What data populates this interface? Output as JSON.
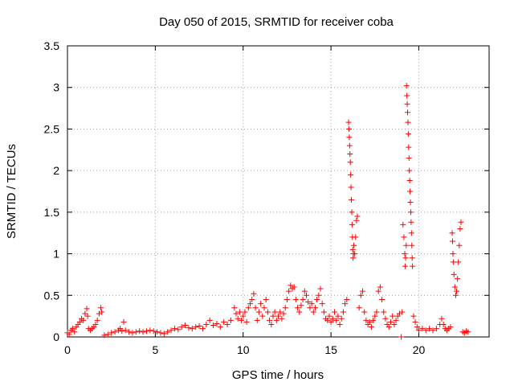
{
  "chart_data": {
    "type": "scatter",
    "title": "Day 050 of 2015, SRMTID for receiver coba",
    "xlabel": "GPS time / hours",
    "ylabel": "SRMTID / TECUs",
    "xlim": [
      0,
      24
    ],
    "ylim": [
      0,
      3.5
    ],
    "xticks": [
      0,
      5,
      10,
      15,
      20
    ],
    "yticks": [
      0,
      0.5,
      1,
      1.5,
      2,
      2.5,
      3,
      3.5
    ],
    "xtick_labels": [
      "0",
      "5",
      "10",
      "15",
      "20"
    ],
    "ytick_labels": [
      "0",
      "0.5",
      "1",
      "1.5",
      "2",
      "2.5",
      "3",
      "3.5"
    ],
    "grid": true,
    "marker": "+",
    "color": "#ff0000",
    "series": [
      {
        "name": "SRMTID",
        "points": [
          [
            0.0,
            0.05
          ],
          [
            0.1,
            0.03
          ],
          [
            0.2,
            0.08
          ],
          [
            0.3,
            0.1
          ],
          [
            0.4,
            0.06
          ],
          [
            0.5,
            0.12
          ],
          [
            0.6,
            0.15
          ],
          [
            0.7,
            0.18
          ],
          [
            0.8,
            0.22
          ],
          [
            0.9,
            0.2
          ],
          [
            1.0,
            0.28
          ],
          [
            1.1,
            0.34
          ],
          [
            1.15,
            0.25
          ],
          [
            1.2,
            0.1
          ],
          [
            1.3,
            0.08
          ],
          [
            1.4,
            0.1
          ],
          [
            1.5,
            0.12
          ],
          [
            1.6,
            0.15
          ],
          [
            1.7,
            0.2
          ],
          [
            1.8,
            0.28
          ],
          [
            1.9,
            0.35
          ],
          [
            1.95,
            0.3
          ],
          [
            2.1,
            0.02
          ],
          [
            2.3,
            0.03
          ],
          [
            2.5,
            0.05
          ],
          [
            2.7,
            0.06
          ],
          [
            2.9,
            0.08
          ],
          [
            3.0,
            0.1
          ],
          [
            3.1,
            0.07
          ],
          [
            3.2,
            0.18
          ],
          [
            3.3,
            0.08
          ],
          [
            3.5,
            0.06
          ],
          [
            3.7,
            0.05
          ],
          [
            3.9,
            0.06
          ],
          [
            4.1,
            0.07
          ],
          [
            4.3,
            0.06
          ],
          [
            4.5,
            0.07
          ],
          [
            4.7,
            0.08
          ],
          [
            4.9,
            0.07
          ],
          [
            5.1,
            0.06
          ],
          [
            5.3,
            0.05
          ],
          [
            5.5,
            0.04
          ],
          [
            5.7,
            0.06
          ],
          [
            5.9,
            0.08
          ],
          [
            6.1,
            0.1
          ],
          [
            6.3,
            0.09
          ],
          [
            6.5,
            0.12
          ],
          [
            6.7,
            0.14
          ],
          [
            6.9,
            0.11
          ],
          [
            7.1,
            0.1
          ],
          [
            7.3,
            0.12
          ],
          [
            7.5,
            0.13
          ],
          [
            7.7,
            0.1
          ],
          [
            7.9,
            0.15
          ],
          [
            8.1,
            0.2
          ],
          [
            8.3,
            0.14
          ],
          [
            8.5,
            0.16
          ],
          [
            8.7,
            0.12
          ],
          [
            8.9,
            0.18
          ],
          [
            9.1,
            0.15
          ],
          [
            9.3,
            0.2
          ],
          [
            9.5,
            0.35
          ],
          [
            9.6,
            0.28
          ],
          [
            9.7,
            0.22
          ],
          [
            9.8,
            0.3
          ],
          [
            9.9,
            0.2
          ],
          [
            10.0,
            0.25
          ],
          [
            10.1,
            0.3
          ],
          [
            10.2,
            0.18
          ],
          [
            10.3,
            0.35
          ],
          [
            10.4,
            0.4
          ],
          [
            10.5,
            0.45
          ],
          [
            10.6,
            0.52
          ],
          [
            10.7,
            0.35
          ],
          [
            10.8,
            0.2
          ],
          [
            10.9,
            0.3
          ],
          [
            11.0,
            0.4
          ],
          [
            11.1,
            0.25
          ],
          [
            11.2,
            0.35
          ],
          [
            11.3,
            0.45
          ],
          [
            11.4,
            0.3
          ],
          [
            11.5,
            0.2
          ],
          [
            11.6,
            0.15
          ],
          [
            11.7,
            0.25
          ],
          [
            11.8,
            0.3
          ],
          [
            11.9,
            0.2
          ],
          [
            12.0,
            0.25
          ],
          [
            12.1,
            0.3
          ],
          [
            12.2,
            0.22
          ],
          [
            12.3,
            0.28
          ],
          [
            12.4,
            0.35
          ],
          [
            12.5,
            0.45
          ],
          [
            12.6,
            0.55
          ],
          [
            12.7,
            0.62
          ],
          [
            12.8,
            0.58
          ],
          [
            12.9,
            0.6
          ],
          [
            13.0,
            0.45
          ],
          [
            13.1,
            0.35
          ],
          [
            13.2,
            0.3
          ],
          [
            13.3,
            0.38
          ],
          [
            13.4,
            0.45
          ],
          [
            13.5,
            0.55
          ],
          [
            13.6,
            0.5
          ],
          [
            13.7,
            0.42
          ],
          [
            13.8,
            0.35
          ],
          [
            13.9,
            0.4
          ],
          [
            14.0,
            0.3
          ],
          [
            14.1,
            0.35
          ],
          [
            14.2,
            0.45
          ],
          [
            14.3,
            0.5
          ],
          [
            14.4,
            0.58
          ],
          [
            14.5,
            0.4
          ],
          [
            14.6,
            0.3
          ],
          [
            14.7,
            0.22
          ],
          [
            14.8,
            0.2
          ],
          [
            14.9,
            0.25
          ],
          [
            15.0,
            0.18
          ],
          [
            15.1,
            0.22
          ],
          [
            15.2,
            0.3
          ],
          [
            15.3,
            0.2
          ],
          [
            15.4,
            0.25
          ],
          [
            15.5,
            0.15
          ],
          [
            15.6,
            0.22
          ],
          [
            15.7,
            0.3
          ],
          [
            15.8,
            0.4
          ],
          [
            15.9,
            0.45
          ],
          [
            16.0,
            2.58
          ],
          [
            16.02,
            2.5
          ],
          [
            16.04,
            2.4
          ],
          [
            16.06,
            2.3
          ],
          [
            16.08,
            2.2
          ],
          [
            16.1,
            2.1
          ],
          [
            16.12,
            1.95
          ],
          [
            16.14,
            1.8
          ],
          [
            16.16,
            1.65
          ],
          [
            16.18,
            1.5
          ],
          [
            16.2,
            1.35
          ],
          [
            16.22,
            1.2
          ],
          [
            16.24,
            1.05
          ],
          [
            16.26,
            0.95
          ],
          [
            16.28,
            1.0
          ],
          [
            16.3,
            1.1
          ],
          [
            16.35,
            1.0
          ],
          [
            16.4,
            1.2
          ],
          [
            16.45,
            1.4
          ],
          [
            16.5,
            1.45
          ],
          [
            16.6,
            0.35
          ],
          [
            16.7,
            0.5
          ],
          [
            16.8,
            0.55
          ],
          [
            16.9,
            0.3
          ],
          [
            17.0,
            0.2
          ],
          [
            17.1,
            0.15
          ],
          [
            17.2,
            0.18
          ],
          [
            17.3,
            0.12
          ],
          [
            17.4,
            0.2
          ],
          [
            17.5,
            0.25
          ],
          [
            17.6,
            0.3
          ],
          [
            17.7,
            0.55
          ],
          [
            17.8,
            0.6
          ],
          [
            17.9,
            0.45
          ],
          [
            18.0,
            0.3
          ],
          [
            18.1,
            0.22
          ],
          [
            18.2,
            0.15
          ],
          [
            18.3,
            0.12
          ],
          [
            18.4,
            0.18
          ],
          [
            18.5,
            0.25
          ],
          [
            18.6,
            0.15
          ],
          [
            18.7,
            0.2
          ],
          [
            18.8,
            0.25
          ],
          [
            18.9,
            0.28
          ],
          [
            19.0,
            0.0
          ],
          [
            19.05,
            0.3
          ],
          [
            19.1,
            1.35
          ],
          [
            19.15,
            1.2
          ],
          [
            19.2,
            1.0
          ],
          [
            19.22,
            0.85
          ],
          [
            19.25,
            0.95
          ],
          [
            19.28,
            1.1
          ],
          [
            19.3,
            3.02
          ],
          [
            19.32,
            2.9
          ],
          [
            19.34,
            2.8
          ],
          [
            19.36,
            2.7
          ],
          [
            19.38,
            2.58
          ],
          [
            19.4,
            2.44
          ],
          [
            19.42,
            2.28
          ],
          [
            19.44,
            2.15
          ],
          [
            19.46,
            2.0
          ],
          [
            19.48,
            1.88
          ],
          [
            19.5,
            1.75
          ],
          [
            19.52,
            1.62
          ],
          [
            19.54,
            1.5
          ],
          [
            19.56,
            1.38
          ],
          [
            19.58,
            1.25
          ],
          [
            19.6,
            1.1
          ],
          [
            19.62,
            0.95
          ],
          [
            19.64,
            0.85
          ],
          [
            19.7,
            0.25
          ],
          [
            19.8,
            0.18
          ],
          [
            19.9,
            0.12
          ],
          [
            20.0,
            0.08
          ],
          [
            20.2,
            0.1
          ],
          [
            20.4,
            0.08
          ],
          [
            20.6,
            0.1
          ],
          [
            20.8,
            0.08
          ],
          [
            21.0,
            0.1
          ],
          [
            21.2,
            0.15
          ],
          [
            21.3,
            0.22
          ],
          [
            21.4,
            0.15
          ],
          [
            21.5,
            0.1
          ],
          [
            21.6,
            0.08
          ],
          [
            21.7,
            0.1
          ],
          [
            21.8,
            0.12
          ],
          [
            21.9,
            1.25
          ],
          [
            21.92,
            1.15
          ],
          [
            21.94,
            1.0
          ],
          [
            21.96,
            0.9
          ],
          [
            22.0,
            0.75
          ],
          [
            22.05,
            0.6
          ],
          [
            22.1,
            0.5
          ],
          [
            22.15,
            0.55
          ],
          [
            22.2,
            0.7
          ],
          [
            22.25,
            0.9
          ],
          [
            22.3,
            1.1
          ],
          [
            22.35,
            1.3
          ],
          [
            22.4,
            1.38
          ],
          [
            22.5,
            0.06
          ],
          [
            22.6,
            0.05
          ],
          [
            22.7,
            0.07
          ],
          [
            22.8,
            0.06
          ]
        ]
      }
    ]
  }
}
